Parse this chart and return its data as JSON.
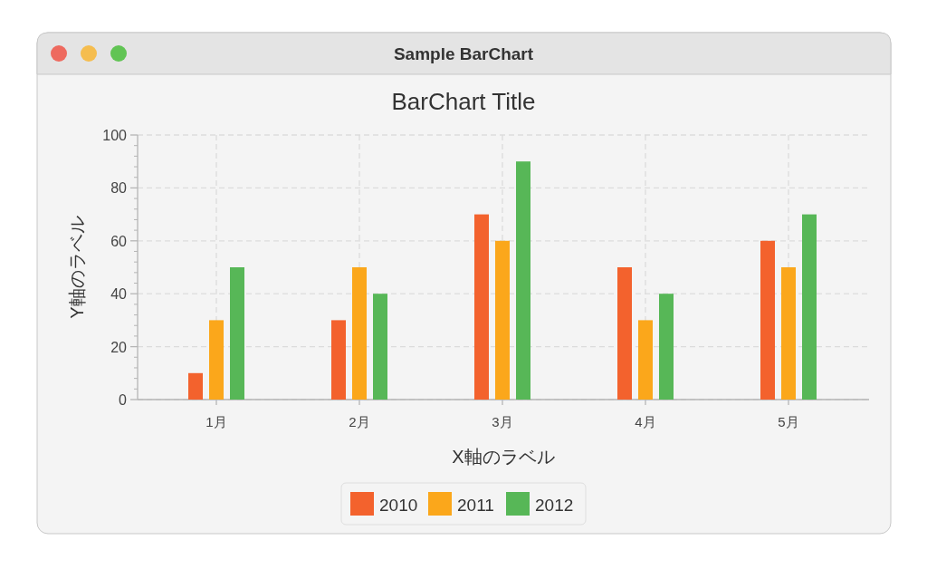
{
  "chart_data": {
    "type": "bar",
    "title": "BarChart Title",
    "xlabel": "X軸のラベル",
    "ylabel": "Y軸のラベル",
    "annotations": [
      "Sample BarChart"
    ],
    "categories": [
      "1月",
      "2月",
      "3月",
      "4月",
      "5月"
    ],
    "series": [
      {
        "name": "2010",
        "color": "#f3622d",
        "values": [
          10,
          30,
          70,
          50,
          60
        ]
      },
      {
        "name": "2011",
        "color": "#fba71b",
        "values": [
          30,
          50,
          60,
          30,
          50
        ]
      },
      {
        "name": "2012",
        "color": "#57b757",
        "values": [
          50,
          40,
          90,
          40,
          70
        ]
      }
    ],
    "ylim": [
      0,
      100
    ],
    "yticks": [
      0,
      20,
      40,
      60,
      80,
      100
    ],
    "grid": true,
    "legend": "bottom"
  }
}
